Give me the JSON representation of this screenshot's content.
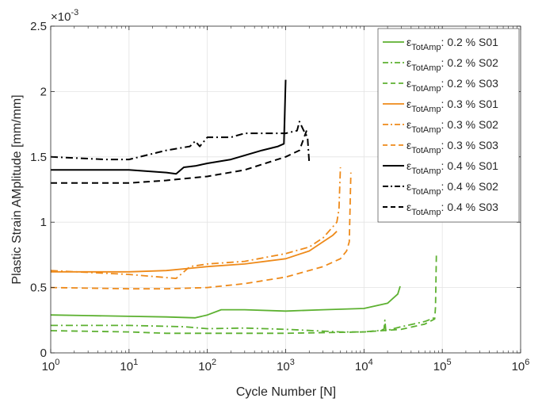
{
  "chart_data": {
    "type": "line",
    "title": "",
    "xlabel": "Cycle Number [N]",
    "ylabel": "Plastic Strain AMplitude [mm/mm]",
    "x_scale": "log",
    "xlim": [
      1,
      1000000
    ],
    "ylim": [
      0,
      0.0025
    ],
    "grid": true,
    "legend_position": "top-right",
    "y_multiplier_label": "×10",
    "y_multiplier_exponent": "-3",
    "x_ticks": [
      {
        "value": 1,
        "base": "10",
        "exp": "0"
      },
      {
        "value": 10,
        "base": "10",
        "exp": "1"
      },
      {
        "value": 100,
        "base": "10",
        "exp": "2"
      },
      {
        "value": 1000,
        "base": "10",
        "exp": "3"
      },
      {
        "value": 10000,
        "base": "10",
        "exp": "4"
      },
      {
        "value": 100000,
        "base": "10",
        "exp": "5"
      },
      {
        "value": 1000000,
        "base": "10",
        "exp": "6"
      }
    ],
    "y_ticks": [
      {
        "value": 0,
        "label": "0"
      },
      {
        "value": 0.0005,
        "label": "0.5"
      },
      {
        "value": 0.001,
        "label": "1"
      },
      {
        "value": 0.0015,
        "label": "1.5"
      },
      {
        "value": 0.002,
        "label": "2"
      },
      {
        "value": 0.0025,
        "label": "2.5"
      }
    ],
    "series": [
      {
        "name": "0.2 % S01",
        "legend_symbol": "ε",
        "legend_subscript": "TotAmp",
        "legend_suffix": ": 0.2 % S01",
        "color": "#5DB131",
        "dash": "solid",
        "width": 1.8,
        "points": [
          [
            1,
            0.00029
          ],
          [
            3,
            0.000285
          ],
          [
            10,
            0.00028
          ],
          [
            30,
            0.000275
          ],
          [
            70,
            0.000268
          ],
          [
            100,
            0.00029
          ],
          [
            150,
            0.00033
          ],
          [
            300,
            0.00033
          ],
          [
            1000,
            0.00032
          ],
          [
            3000,
            0.00033
          ],
          [
            10000,
            0.00034
          ],
          [
            20000,
            0.00038
          ],
          [
            27000,
            0.00045
          ],
          [
            29000,
            0.00051
          ]
        ]
      },
      {
        "name": "0.2 % S02",
        "legend_symbol": "ε",
        "legend_subscript": "TotAmp",
        "legend_suffix": ": 0.2 % S02",
        "color": "#5DB131",
        "dash": "dashdot",
        "width": 1.8,
        "points": [
          [
            1,
            0.00021
          ],
          [
            10,
            0.00021
          ],
          [
            50,
            0.0002
          ],
          [
            100,
            0.000185
          ],
          [
            300,
            0.00019
          ],
          [
            1000,
            0.00018
          ],
          [
            5000,
            0.00016
          ],
          [
            10000,
            0.00016
          ],
          [
            15000,
            0.00017
          ],
          [
            18000,
            0.00018
          ],
          [
            18500,
            0.00025
          ],
          [
            19000,
            0.00017
          ],
          [
            30000,
            0.0002
          ],
          [
            60000,
            0.00024
          ],
          [
            80000,
            0.00027
          ]
        ]
      },
      {
        "name": "0.2 % S03",
        "legend_symbol": "ε",
        "legend_subscript": "TotAmp",
        "legend_suffix": ": 0.2 % S03",
        "color": "#5DB131",
        "dash": "dashed",
        "width": 1.8,
        "points": [
          [
            1,
            0.00017
          ],
          [
            10,
            0.00016
          ],
          [
            30,
            0.00015
          ],
          [
            100,
            0.00015
          ],
          [
            1000,
            0.00015
          ],
          [
            10000,
            0.00016
          ],
          [
            30000,
            0.00018
          ],
          [
            60000,
            0.00022
          ],
          [
            80000,
            0.00026
          ],
          [
            82000,
            0.00035
          ],
          [
            84000,
            0.00075
          ]
        ]
      },
      {
        "name": "0.3 % S01",
        "legend_symbol": "ε",
        "legend_subscript": "TotAmp",
        "legend_suffix": ": 0.3 % S01",
        "color": "#EE8A1A",
        "dash": "solid",
        "width": 1.8,
        "points": [
          [
            1,
            0.00062
          ],
          [
            10,
            0.00062
          ],
          [
            30,
            0.00063
          ],
          [
            100,
            0.00066
          ],
          [
            300,
            0.00068
          ],
          [
            1000,
            0.00072
          ],
          [
            2000,
            0.00078
          ],
          [
            3000,
            0.00085
          ],
          [
            4000,
            0.0009
          ],
          [
            4500,
            0.00093
          ]
        ]
      },
      {
        "name": "0.3 % S02",
        "legend_symbol": "ε",
        "legend_subscript": "TotAmp",
        "legend_suffix": ": 0.3 % S02",
        "color": "#EE8A1A",
        "dash": "dashdot",
        "width": 1.8,
        "points": [
          [
            1,
            0.00063
          ],
          [
            10,
            0.0006
          ],
          [
            40,
            0.00057
          ],
          [
            60,
            0.00066
          ],
          [
            100,
            0.00068
          ],
          [
            300,
            0.0007
          ],
          [
            1000,
            0.00076
          ],
          [
            2000,
            0.00081
          ],
          [
            3000,
            0.00088
          ],
          [
            4500,
            0.001
          ],
          [
            4800,
            0.0011
          ],
          [
            5000,
            0.00142
          ]
        ]
      },
      {
        "name": "0.3 % S03",
        "legend_symbol": "ε",
        "legend_subscript": "TotAmp",
        "legend_suffix": ": 0.3 % S03",
        "color": "#EE8A1A",
        "dash": "dashed",
        "width": 1.8,
        "points": [
          [
            1,
            0.0005
          ],
          [
            10,
            0.00049
          ],
          [
            30,
            0.00049
          ],
          [
            100,
            0.0005
          ],
          [
            300,
            0.00053
          ],
          [
            1000,
            0.00058
          ],
          [
            3000,
            0.00066
          ],
          [
            5000,
            0.00072
          ],
          [
            6000,
            0.00078
          ],
          [
            6500,
            0.00085
          ],
          [
            6800,
            0.00138
          ]
        ]
      },
      {
        "name": "0.4 % S01",
        "legend_symbol": "ε",
        "legend_subscript": "TotAmp",
        "legend_suffix": ": 0.4 % S01",
        "color": "#000000",
        "dash": "solid",
        "width": 2.0,
        "points": [
          [
            1,
            0.0014
          ],
          [
            10,
            0.0014
          ],
          [
            30,
            0.00138
          ],
          [
            40,
            0.00137
          ],
          [
            50,
            0.00142
          ],
          [
            70,
            0.00143
          ],
          [
            100,
            0.00145
          ],
          [
            200,
            0.00148
          ],
          [
            500,
            0.00155
          ],
          [
            800,
            0.00158
          ],
          [
            950,
            0.0016
          ],
          [
            1000,
            0.00209
          ]
        ]
      },
      {
        "name": "0.4 % S02",
        "legend_symbol": "ε",
        "legend_subscript": "TotAmp",
        "legend_suffix": ": 0.4 % S02",
        "color": "#000000",
        "dash": "dashdot",
        "width": 2.0,
        "points": [
          [
            1,
            0.0015
          ],
          [
            5,
            0.00148
          ],
          [
            10,
            0.00148
          ],
          [
            30,
            0.00155
          ],
          [
            60,
            0.00158
          ],
          [
            70,
            0.00162
          ],
          [
            80,
            0.00158
          ],
          [
            100,
            0.00165
          ],
          [
            200,
            0.00165
          ],
          [
            300,
            0.00168
          ],
          [
            500,
            0.00168
          ],
          [
            1000,
            0.00168
          ],
          [
            1400,
            0.0017
          ],
          [
            1500,
            0.00177
          ],
          [
            1700,
            0.0017
          ],
          [
            1900,
            0.00165
          ],
          [
            2000,
            0.00145
          ]
        ]
      },
      {
        "name": "0.4 % S03",
        "legend_symbol": "ε",
        "legend_subscript": "TotAmp",
        "legend_suffix": ": 0.4 % S03",
        "color": "#000000",
        "dash": "dashed",
        "width": 2.0,
        "points": [
          [
            1,
            0.0013
          ],
          [
            10,
            0.0013
          ],
          [
            30,
            0.00132
          ],
          [
            100,
            0.00135
          ],
          [
            300,
            0.0014
          ],
          [
            1000,
            0.0015
          ],
          [
            1500,
            0.00155
          ],
          [
            1800,
            0.00168
          ],
          [
            1900,
            0.00172
          ]
        ]
      }
    ]
  }
}
